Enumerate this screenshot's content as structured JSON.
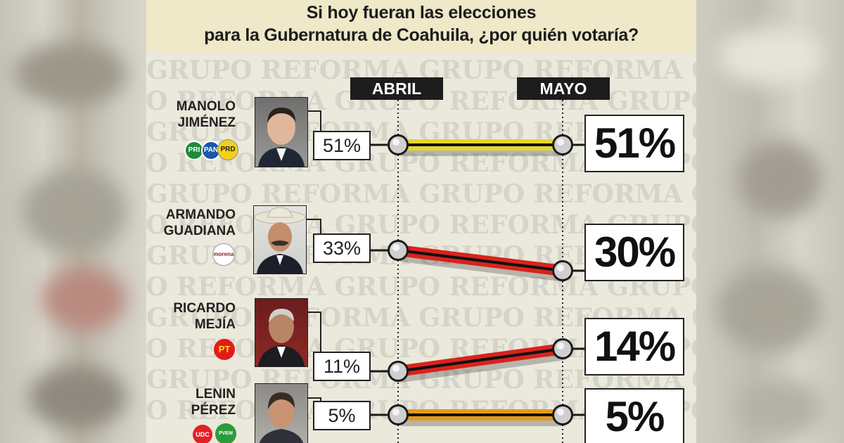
{
  "title_line1": "Si hoy fueran las elecciones",
  "title_line2": "para la Gubernatura de Coahuila, ¿por quién votaría?",
  "watermark_text": "GRUPO REFORMA",
  "colors": {
    "header_bg": "#efe8c9",
    "panel_bg": "#ebe8dc",
    "label_bg": "#1d1d1d"
  },
  "chart_data": {
    "type": "line",
    "categories": [
      "ABRIL",
      "MAYO"
    ],
    "series": [
      {
        "name": "MANOLO JIMÉNEZ",
        "values": [
          51,
          51
        ],
        "abril_label": "51%",
        "mayo_label": "51%",
        "line_color": "#e3d62a",
        "parties": [
          "PRI",
          "PAN",
          "PRD"
        ]
      },
      {
        "name": "ARMANDO GUADIANA",
        "values": [
          33,
          30
        ],
        "abril_label": "33%",
        "mayo_label": "30%",
        "line_color": "#d8231d",
        "parties": [
          "morena"
        ]
      },
      {
        "name": "RICARDO MEJÍA",
        "values": [
          11,
          14
        ],
        "abril_label": "11%",
        "mayo_label": "14%",
        "line_color": "#d8231d",
        "parties": [
          "PT"
        ]
      },
      {
        "name": "LENIN PÉREZ",
        "values": [
          5,
          5
        ],
        "abril_label": "5%",
        "mayo_label": "5%",
        "line_color": "#e39a1b",
        "parties": [
          "UDC",
          "PVEM"
        ]
      }
    ]
  },
  "candidates": [
    {
      "name_line1": "MANOLO",
      "name_line2": "JIMÉNEZ"
    },
    {
      "name_line1": "ARMANDO",
      "name_line2": "GUADIANA"
    },
    {
      "name_line1": "RICARDO",
      "name_line2": "MEJÍA"
    },
    {
      "name_line1": "LENIN",
      "name_line2": "PÉREZ"
    }
  ],
  "party_logos": {
    "pri": "PRI",
    "pan": "PAN",
    "prd": "PRD",
    "morena": "morena",
    "pt": "PT",
    "udc": "UDC",
    "pvem": "PVEM"
  }
}
